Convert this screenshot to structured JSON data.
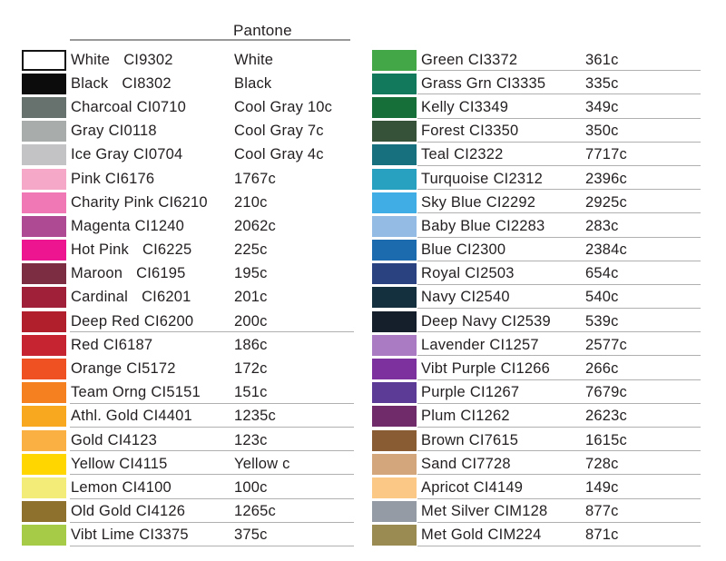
{
  "header": {
    "pantone_label": "Pantone"
  },
  "left_column": {
    "rows": [
      {
        "name": "White",
        "code": "CI9302",
        "pantone": "White",
        "color": "#ffffff",
        "border": true,
        "wide_gap": true,
        "underline": false
      },
      {
        "name": "Black",
        "code": "CI8302",
        "pantone": "Black",
        "color": "#0c0c0c",
        "border": false,
        "wide_gap": true,
        "underline": false
      },
      {
        "name": "Charcoal",
        "code": "CI0710",
        "pantone": "Cool Gray 10c",
        "color": "#67716d",
        "border": false,
        "wide_gap": false,
        "underline": false
      },
      {
        "name": "Gray",
        "code": "CI0118",
        "pantone": "Cool Gray 7c",
        "color": "#a8adab",
        "border": false,
        "wide_gap": false,
        "underline": false
      },
      {
        "name": "Ice Gray",
        "code": "CI0704",
        "pantone": "Cool Gray 4c",
        "color": "#c3c3c5",
        "border": false,
        "wide_gap": false,
        "underline": false
      },
      {
        "name": "Pink",
        "code": "CI6176",
        "pantone": "1767c",
        "color": "#f5a8c7",
        "border": false,
        "wide_gap": false,
        "underline": false
      },
      {
        "name": "Charity Pink",
        "code": "CI6210",
        "pantone": "210c",
        "color": "#f078b4",
        "border": false,
        "wide_gap": false,
        "underline": false
      },
      {
        "name": "Magenta",
        "code": "CI1240",
        "pantone": "2062c",
        "color": "#ae4a93",
        "border": false,
        "wide_gap": false,
        "underline": false
      },
      {
        "name": "Hot Pink",
        "code": "CI6225",
        "pantone": "225c",
        "color": "#ee1590",
        "border": false,
        "wide_gap": true,
        "underline": false
      },
      {
        "name": "Maroon",
        "code": "CI6195",
        "pantone": "195c",
        "color": "#7d2d42",
        "border": false,
        "wide_gap": true,
        "underline": false
      },
      {
        "name": "Cardinal",
        "code": "CI6201",
        "pantone": "201c",
        "color": "#a02039",
        "border": false,
        "wide_gap": true,
        "underline": false
      },
      {
        "name": "Deep Red",
        "code": "CI6200",
        "pantone": "200c",
        "color": "#b21f2c",
        "border": false,
        "wide_gap": false,
        "underline": true
      },
      {
        "name": "Red",
        "code": "CI6187",
        "pantone": "186c",
        "color": "#c62430",
        "border": false,
        "wide_gap": false,
        "underline": false
      },
      {
        "name": "Orange",
        "code": "CI5172",
        "pantone": "172c",
        "color": "#f05123",
        "border": false,
        "wide_gap": false,
        "underline": false
      },
      {
        "name": "Team Orng",
        "code": "CI5151",
        "pantone": "151c",
        "color": "#f58020",
        "border": false,
        "wide_gap": false,
        "underline": true
      },
      {
        "name": "Athl. Gold",
        "code": "CI4401",
        "pantone": "1235c",
        "color": "#f8a81e",
        "border": false,
        "wide_gap": false,
        "underline": true
      },
      {
        "name": "Gold",
        "code": "CI4123",
        "pantone": "123c",
        "color": "#fbb043",
        "border": false,
        "wide_gap": false,
        "underline": true
      },
      {
        "name": "Yellow",
        "code": "CI4115",
        "pantone": "Yellow c",
        "color": "#ffd600",
        "border": false,
        "wide_gap": false,
        "underline": true
      },
      {
        "name": "Lemon",
        "code": "CI4100",
        "pantone": "100c",
        "color": "#f4ec79",
        "border": false,
        "wide_gap": false,
        "underline": true
      },
      {
        "name": "Old Gold",
        "code": "CI4126",
        "pantone": "1265c",
        "color": "#8e712c",
        "border": false,
        "wide_gap": false,
        "underline": true
      },
      {
        "name": "Vibt Lime",
        "code": "CI3375",
        "pantone": "375c",
        "color": "#a5cb47",
        "border": false,
        "wide_gap": false,
        "underline": true
      }
    ]
  },
  "right_column": {
    "rows": [
      {
        "name": "Green",
        "code": "CI3372",
        "pantone": "361c",
        "color": "#43a748",
        "border": false,
        "wide_gap": false,
        "underline": true
      },
      {
        "name": "Grass Grn",
        "code": "CI3335",
        "pantone": "335c",
        "color": "#13795c",
        "border": false,
        "wide_gap": false,
        "underline": true
      },
      {
        "name": "Kelly",
        "code": "CI3349",
        "pantone": "349c",
        "color": "#166f39",
        "border": false,
        "wide_gap": false,
        "underline": true
      },
      {
        "name": "Forest",
        "code": "CI3350",
        "pantone": "350c",
        "color": "#365339",
        "border": false,
        "wide_gap": false,
        "underline": true
      },
      {
        "name": "Teal",
        "code": "CI2322",
        "pantone": "7717c",
        "color": "#16707e",
        "border": false,
        "wide_gap": false,
        "underline": true
      },
      {
        "name": "Turquoise",
        "code": "CI2312",
        "pantone": "2396c",
        "color": "#28a0c0",
        "border": false,
        "wide_gap": false,
        "underline": true
      },
      {
        "name": "Sky Blue",
        "code": "CI2292",
        "pantone": "2925c",
        "color": "#41ade5",
        "border": false,
        "wide_gap": false,
        "underline": true
      },
      {
        "name": "Baby Blue",
        "code": "CI2283",
        "pantone": "283c",
        "color": "#94bbe4",
        "border": false,
        "wide_gap": false,
        "underline": true
      },
      {
        "name": "Blue",
        "code": "CI2300",
        "pantone": "2384c",
        "color": "#1c6bae",
        "border": false,
        "wide_gap": false,
        "underline": true
      },
      {
        "name": "Royal",
        "code": "CI2503",
        "pantone": "654c",
        "color": "#2a4280",
        "border": false,
        "wide_gap": false,
        "underline": true
      },
      {
        "name": "Navy",
        "code": "CI2540",
        "pantone": "540c",
        "color": "#14303f",
        "border": false,
        "wide_gap": false,
        "underline": true
      },
      {
        "name": "Deep Navy",
        "code": "CI2539",
        "pantone": "539c",
        "color": "#151f2b",
        "border": false,
        "wide_gap": false,
        "underline": true
      },
      {
        "name": "Lavender",
        "code": "CI1257",
        "pantone": "2577c",
        "color": "#aa7ac3",
        "border": false,
        "wide_gap": false,
        "underline": true
      },
      {
        "name": "Vibt Purple",
        "code": "CI1266",
        "pantone": "266c",
        "color": "#7c319f",
        "border": false,
        "wide_gap": false,
        "underline": true
      },
      {
        "name": "Purple",
        "code": "CI1267",
        "pantone": "7679c",
        "color": "#5b3b96",
        "border": false,
        "wide_gap": false,
        "underline": true
      },
      {
        "name": "Plum",
        "code": "CI1262",
        "pantone": "2623c",
        "color": "#702c6a",
        "border": false,
        "wide_gap": false,
        "underline": true
      },
      {
        "name": "Brown",
        "code": "CI7615",
        "pantone": "1615c",
        "color": "#8a5c33",
        "border": false,
        "wide_gap": false,
        "underline": true
      },
      {
        "name": "Sand",
        "code": "CI7728",
        "pantone": "728c",
        "color": "#d3a67b",
        "border": false,
        "wide_gap": false,
        "underline": true
      },
      {
        "name": "Apricot",
        "code": "CI4149",
        "pantone": "149c",
        "color": "#fbc885",
        "border": false,
        "wide_gap": false,
        "underline": true
      },
      {
        "name": "Met Silver",
        "code": "CIM128",
        "pantone": "877c",
        "color": "#949ba5",
        "border": false,
        "wide_gap": false,
        "underline": true
      },
      {
        "name": "Met Gold",
        "code": "CIM224",
        "pantone": "871c",
        "color": "#9a8b52",
        "border": false,
        "wide_gap": false,
        "underline": true
      }
    ]
  }
}
